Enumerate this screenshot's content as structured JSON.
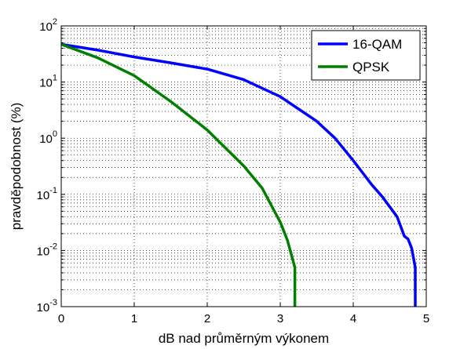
{
  "chart_data": {
    "type": "line",
    "title": "",
    "xlabel": "dB nad průměrným výkonem",
    "ylabel": "pravděpodobnost (%)",
    "xlim": [
      0,
      5
    ],
    "ylim": [
      0.001,
      100
    ],
    "yscale": "log",
    "grid": true,
    "legend_position": "top-right",
    "x_ticks": [
      "0",
      "1",
      "2",
      "3",
      "4",
      "5"
    ],
    "y_ticks": [
      {
        "base": "10",
        "exp": "-3",
        "value": 0.001
      },
      {
        "base": "10",
        "exp": "-2",
        "value": 0.01
      },
      {
        "base": "10",
        "exp": "-1",
        "value": 0.1
      },
      {
        "base": "10",
        "exp": "0",
        "value": 1
      },
      {
        "base": "10",
        "exp": "1",
        "value": 10
      },
      {
        "base": "10",
        "exp": "2",
        "value": 100
      }
    ],
    "series": [
      {
        "name": "16-QAM",
        "color": "#0000ff",
        "points": [
          [
            0,
            47
          ],
          [
            0.5,
            37
          ],
          [
            1,
            28
          ],
          [
            1.5,
            22
          ],
          [
            2,
            17
          ],
          [
            2.5,
            11
          ],
          [
            3,
            5.5
          ],
          [
            3.5,
            2
          ],
          [
            3.75,
            1.0
          ],
          [
            4.0,
            0.4
          ],
          [
            4.25,
            0.15
          ],
          [
            4.4,
            0.09
          ],
          [
            4.6,
            0.04
          ],
          [
            4.7,
            0.018
          ],
          [
            4.75,
            0.016
          ],
          [
            4.8,
            0.011
          ],
          [
            4.85,
            0.005
          ],
          [
            4.85,
            0.001
          ]
        ]
      },
      {
        "name": "QPSK",
        "color": "#007f00",
        "points": [
          [
            0,
            47
          ],
          [
            0.5,
            27
          ],
          [
            1,
            13
          ],
          [
            1.5,
            4.5
          ],
          [
            2,
            1.4
          ],
          [
            2.5,
            0.32
          ],
          [
            2.75,
            0.13
          ],
          [
            3.0,
            0.032
          ],
          [
            3.1,
            0.015
          ],
          [
            3.2,
            0.005
          ],
          [
            3.2,
            0.001
          ]
        ]
      }
    ]
  }
}
